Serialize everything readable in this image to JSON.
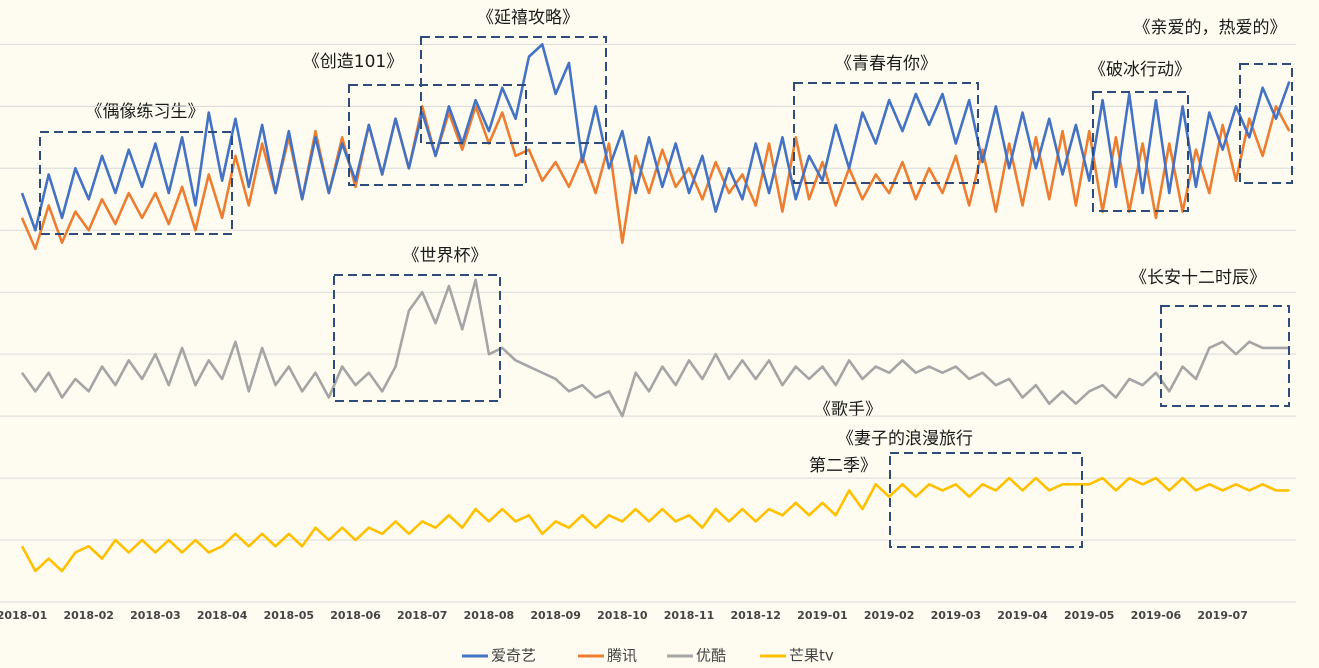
{
  "chart_data": {
    "type": "line",
    "x": [
      0,
      0.2,
      0.4,
      0.6,
      0.8,
      1,
      1.2,
      1.4,
      1.6,
      1.8,
      2,
      2.2,
      2.4,
      2.6,
      2.8,
      3,
      3.2,
      3.4,
      3.6,
      3.8,
      4,
      4.2,
      4.4,
      4.6,
      4.8,
      5,
      5.2,
      5.4,
      5.6,
      5.8,
      6,
      6.2,
      6.4,
      6.6,
      6.8,
      7,
      7.2,
      7.4,
      7.6,
      7.8,
      8,
      8.2,
      8.4,
      8.6,
      8.8,
      9,
      9.2,
      9.4,
      9.6,
      9.8,
      10,
      10.2,
      10.4,
      10.6,
      10.8,
      11,
      11.2,
      11.4,
      11.6,
      11.8,
      12,
      12.2,
      12.4,
      12.6,
      12.8,
      13,
      13.2,
      13.4,
      13.6,
      13.8,
      14,
      14.2,
      14.4,
      14.6,
      14.8,
      15,
      15.2,
      15.4,
      15.6,
      15.8,
      16,
      16.2,
      16.4,
      16.6,
      16.8,
      17,
      17.2,
      17.4,
      17.6,
      17.8,
      18,
      18.2,
      18.4,
      18.6,
      18.8,
      19
    ],
    "xlim": [
      -0.33,
      19.1
    ],
    "xticks": [
      {
        "value": 0,
        "label": "2018-01"
      },
      {
        "value": 1,
        "label": "2018-02"
      },
      {
        "value": 2,
        "label": "2018-03"
      },
      {
        "value": 3,
        "label": "2018-04"
      },
      {
        "value": 4,
        "label": "2018-05"
      },
      {
        "value": 5,
        "label": "2018-06"
      },
      {
        "value": 6,
        "label": "2018-07"
      },
      {
        "value": 7,
        "label": "2018-08"
      },
      {
        "value": 8,
        "label": "2018-09"
      },
      {
        "value": 9,
        "label": "2018-10"
      },
      {
        "value": 10,
        "label": "2018-11"
      },
      {
        "value": 11,
        "label": "2018-12"
      },
      {
        "value": 12,
        "label": "2019-01"
      },
      {
        "value": 13,
        "label": "2019-02"
      },
      {
        "value": 14,
        "label": "2019-03"
      },
      {
        "value": 15,
        "label": "2019-04"
      },
      {
        "value": 16,
        "label": "2019-05"
      },
      {
        "value": 17,
        "label": "2019-06"
      },
      {
        "value": 18,
        "label": "2019-07"
      }
    ],
    "ylim": [
      0,
      97
    ],
    "yticks": [
      0,
      10,
      20,
      30,
      40,
      50,
      60,
      70,
      80,
      90
    ],
    "grid": true,
    "legend": "bottom",
    "series": [
      {
        "name": "爱奇艺",
        "color": "#4472c4",
        "values": [
          66,
          60,
          69,
          62,
          70,
          65,
          72,
          66,
          73,
          67,
          74,
          66,
          75,
          64,
          79,
          68,
          78,
          67,
          77,
          66,
          76,
          65,
          75,
          66,
          74,
          68,
          77,
          69,
          78,
          70,
          79,
          72,
          80,
          74,
          81,
          76,
          83,
          78,
          88,
          90,
          82,
          87,
          71,
          80,
          70,
          76,
          66,
          75,
          67,
          74,
          66,
          72,
          63,
          70,
          65,
          74,
          66,
          75,
          65,
          72,
          68,
          77,
          70,
          79,
          74,
          81,
          76,
          82,
          77,
          82,
          74,
          81,
          71,
          80,
          70,
          79,
          70,
          78,
          69,
          77,
          68,
          81,
          67,
          82,
          66,
          81,
          66,
          80,
          67,
          79,
          73,
          80,
          75,
          83,
          78,
          84
        ]
      },
      {
        "name": "腾讯",
        "color": "#ed7d31",
        "values": [
          62,
          57,
          64,
          58,
          63,
          60,
          65,
          61,
          66,
          62,
          66,
          61,
          67,
          60,
          69,
          62,
          72,
          64,
          74,
          66,
          75,
          65,
          76,
          66,
          75,
          67,
          77,
          69,
          78,
          70,
          80,
          72,
          79,
          73,
          80,
          74,
          79,
          72,
          73,
          68,
          71,
          67,
          72,
          66,
          74,
          58,
          72,
          66,
          73,
          67,
          70,
          65,
          71,
          66,
          69,
          64,
          74,
          63,
          75,
          65,
          71,
          64,
          70,
          65,
          69,
          66,
          71,
          65,
          70,
          66,
          72,
          64,
          73,
          63,
          74,
          64,
          75,
          65,
          76,
          64,
          76,
          63,
          75,
          63,
          74,
          62,
          74,
          63,
          73,
          66,
          77,
          68,
          78,
          72,
          80,
          76
        ]
      },
      {
        "name": "优酷",
        "color": "#a5a5a5",
        "values": [
          37,
          34,
          37,
          33,
          36,
          34,
          38,
          35,
          39,
          36,
          40,
          35,
          41,
          35,
          39,
          36,
          42,
          34,
          41,
          35,
          38,
          34,
          37,
          33,
          38,
          35,
          37,
          34,
          38,
          47,
          50,
          45,
          51,
          44,
          52,
          40,
          41,
          39,
          38,
          37,
          36,
          34,
          35,
          33,
          34,
          30,
          37,
          34,
          38,
          35,
          39,
          36,
          40,
          36,
          39,
          36,
          39,
          35,
          38,
          36,
          38,
          35,
          39,
          36,
          38,
          37,
          39,
          37,
          38,
          37,
          38,
          36,
          37,
          35,
          36,
          33,
          35,
          32,
          34,
          32,
          34,
          35,
          33,
          36,
          35,
          37,
          34,
          38,
          36,
          41,
          42,
          40,
          42,
          41,
          41,
          41
        ]
      },
      {
        "name": "芒果tv",
        "color": "#ffc000",
        "values": [
          9,
          5,
          7,
          5,
          8,
          9,
          7,
          10,
          8,
          10,
          8,
          10,
          8,
          10,
          8,
          9,
          11,
          9,
          11,
          9,
          11,
          9,
          12,
          10,
          12,
          10,
          12,
          11,
          13,
          11,
          13,
          12,
          14,
          12,
          15,
          13,
          15,
          13,
          14,
          11,
          13,
          12,
          14,
          12,
          14,
          13,
          15,
          13,
          15,
          13,
          14,
          12,
          15,
          13,
          15,
          13,
          15,
          14,
          16,
          14,
          16,
          14,
          18,
          15,
          19,
          17,
          19,
          17,
          19,
          18,
          19,
          17,
          19,
          18,
          20,
          18,
          20,
          18,
          19,
          19,
          19,
          20,
          18,
          20,
          19,
          20,
          18,
          20,
          18,
          19,
          18,
          19,
          18,
          19,
          18,
          18
        ]
      }
    ],
    "annotations": [
      "《偶像练习生》",
      "《创造101》",
      "《延禧攻略》",
      "《青春有你》",
      "《破冰行动》",
      "《亲爱的，热爱的》",
      "《世界杯》",
      "《长安十二时辰》",
      "《歌手》",
      "《妻子的浪漫旅行",
      "第二季》"
    ]
  }
}
